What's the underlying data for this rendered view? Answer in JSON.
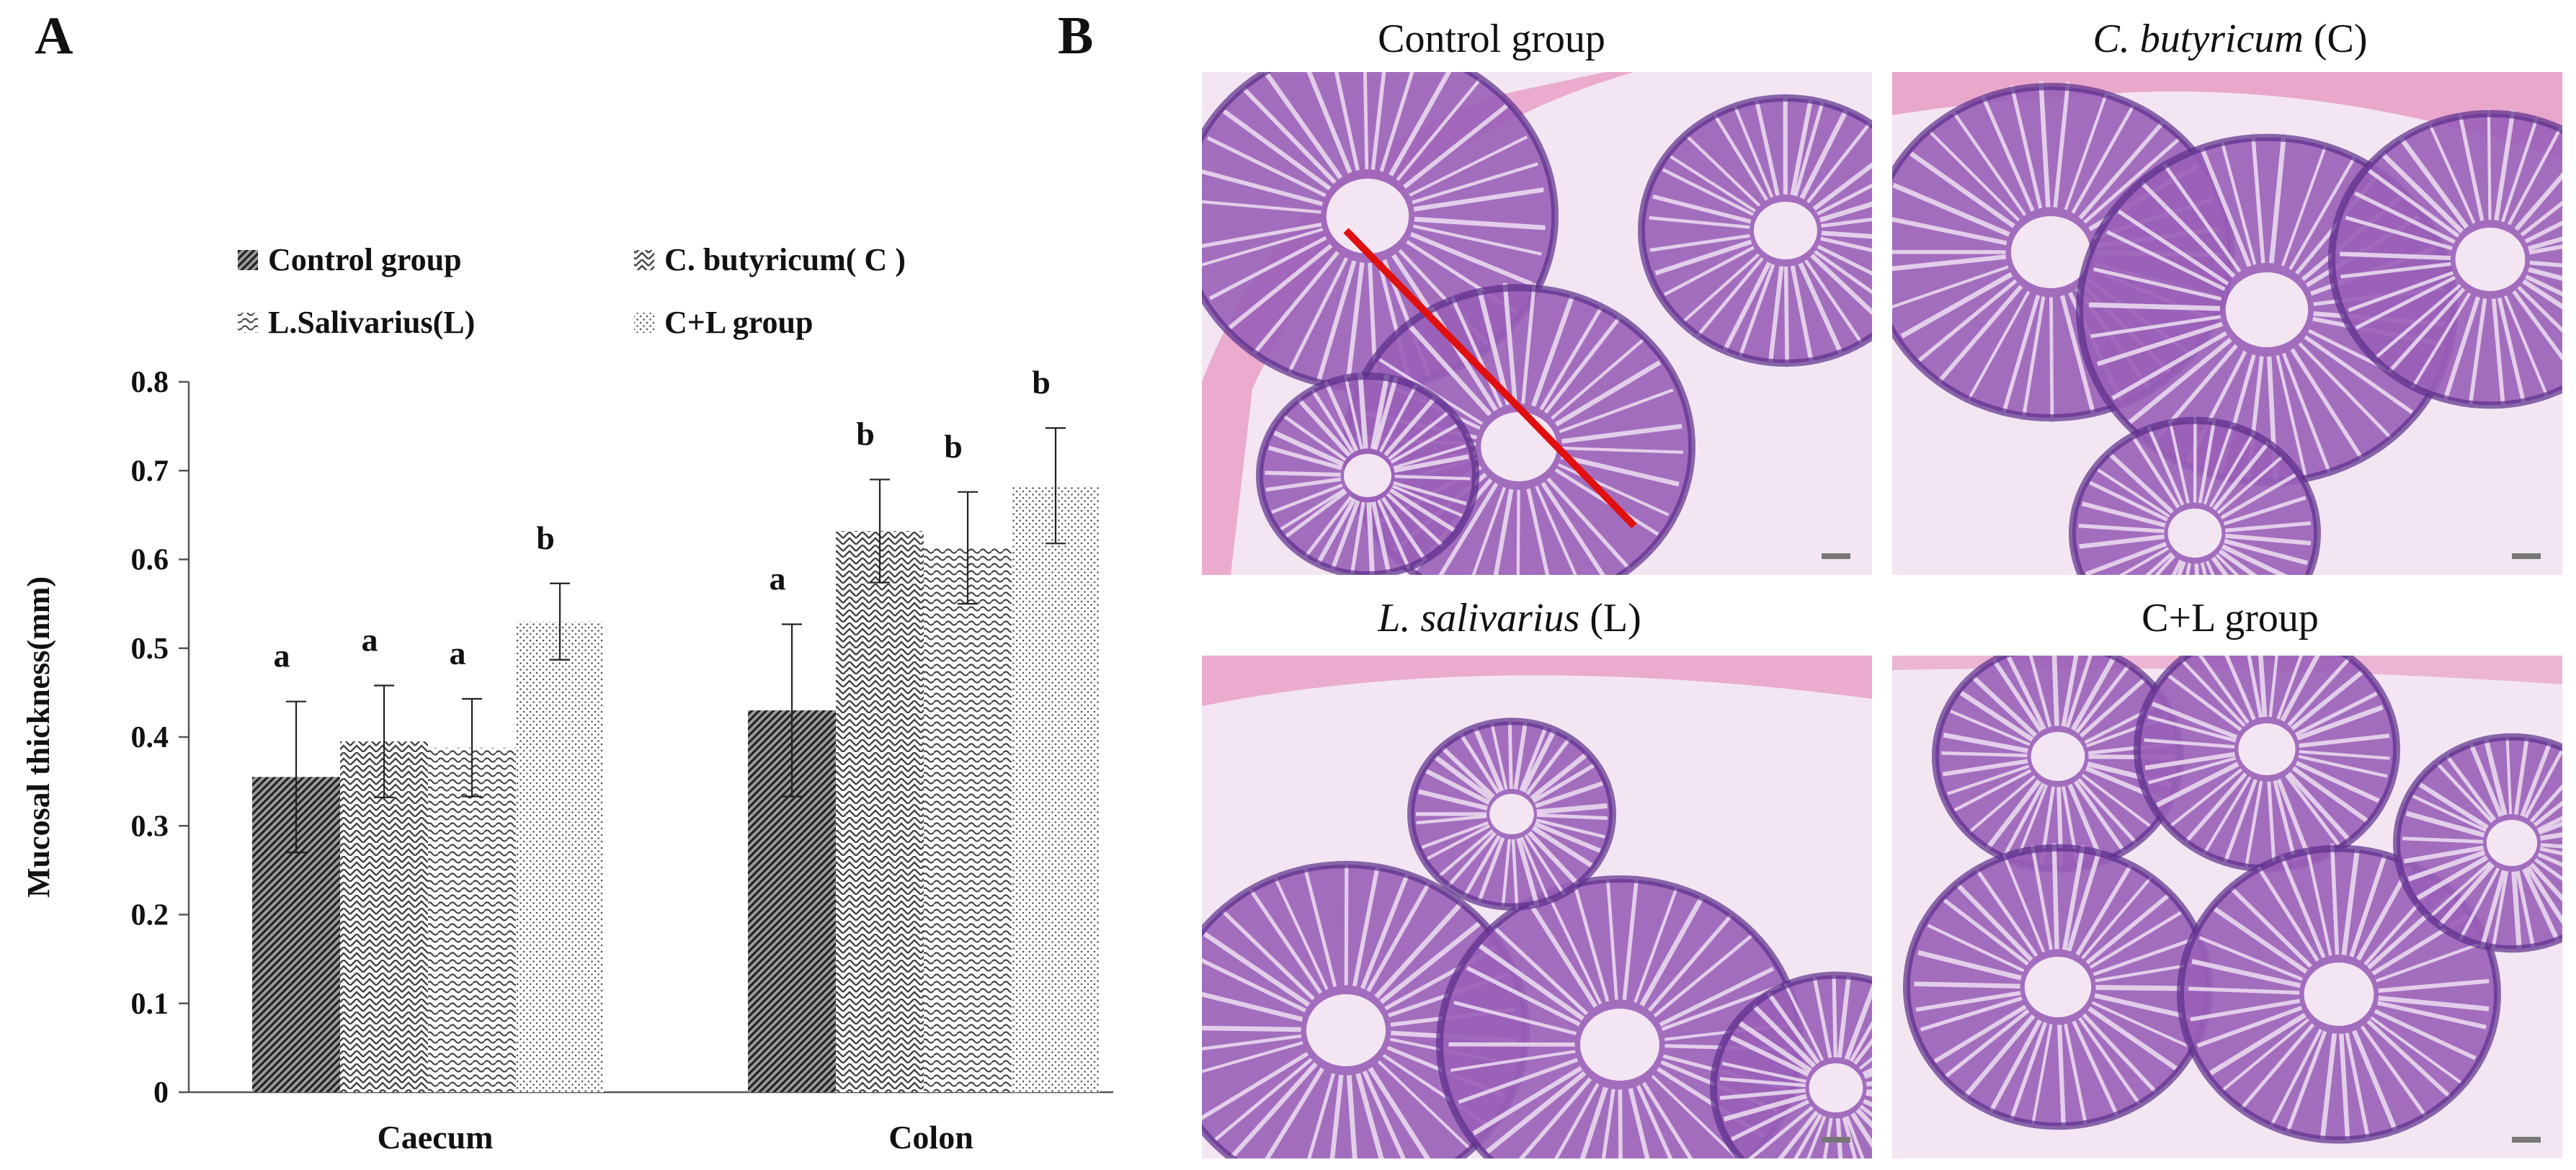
{
  "panels": {
    "a_label": "A",
    "b_label": "B"
  },
  "chart_data": {
    "type": "bar",
    "title": "",
    "xlabel": "",
    "ylabel": "Mucosal thickness(mm)",
    "ylim": [
      0,
      0.8
    ],
    "yticks": [
      "0",
      "0.1",
      "0.2",
      "0.3",
      "0.4",
      "0.5",
      "0.6",
      "0.7",
      "0.8"
    ],
    "categories": [
      "Caecum",
      "Colon"
    ],
    "grid": false,
    "legend_position": "top",
    "series": [
      {
        "name": "Control group",
        "pattern": "diagonal-dense",
        "color": "#3a3a3a",
        "values": [
          0.355,
          0.43
        ],
        "errors": [
          0.085,
          0.097
        ],
        "labels": [
          "a",
          "a"
        ]
      },
      {
        "name": "C. butyricum( C )",
        "pattern": "crosshatch",
        "color": "#555555",
        "values": [
          0.395,
          0.632
        ],
        "errors": [
          0.063,
          0.058
        ],
        "labels": [
          "a",
          "b"
        ]
      },
      {
        "name": "L.Salivarius(L)",
        "pattern": "wavy",
        "color": "#555555",
        "values": [
          0.388,
          0.613
        ],
        "errors": [
          0.055,
          0.063
        ],
        "labels": [
          "a",
          "b"
        ]
      },
      {
        "name": "C+L group",
        "pattern": "dots",
        "color": "#777777",
        "values": [
          0.53,
          0.683
        ],
        "errors": [
          0.043,
          0.065
        ],
        "labels": [
          "b",
          "b"
        ]
      }
    ]
  },
  "micrographs": [
    {
      "title_plain": "Control group",
      "title_italic": "",
      "title_suffix": "",
      "has_red_line": true
    },
    {
      "title_plain": "",
      "title_italic": "C. butyricum",
      "title_suffix": " (C)",
      "has_red_line": false
    },
    {
      "title_plain": "",
      "title_italic": "L. salivarius",
      "title_suffix": " (L)",
      "has_red_line": false
    },
    {
      "title_plain": "C+L group",
      "title_italic": "",
      "title_suffix": "",
      "has_red_line": false
    }
  ],
  "colors": {
    "tissue_light": "#f3e6f2",
    "tissue_gland": "#9a5fb8",
    "tissue_dark": "#5a2e8a",
    "muscle": "#e8a0c8",
    "red_line": "#e01010"
  }
}
